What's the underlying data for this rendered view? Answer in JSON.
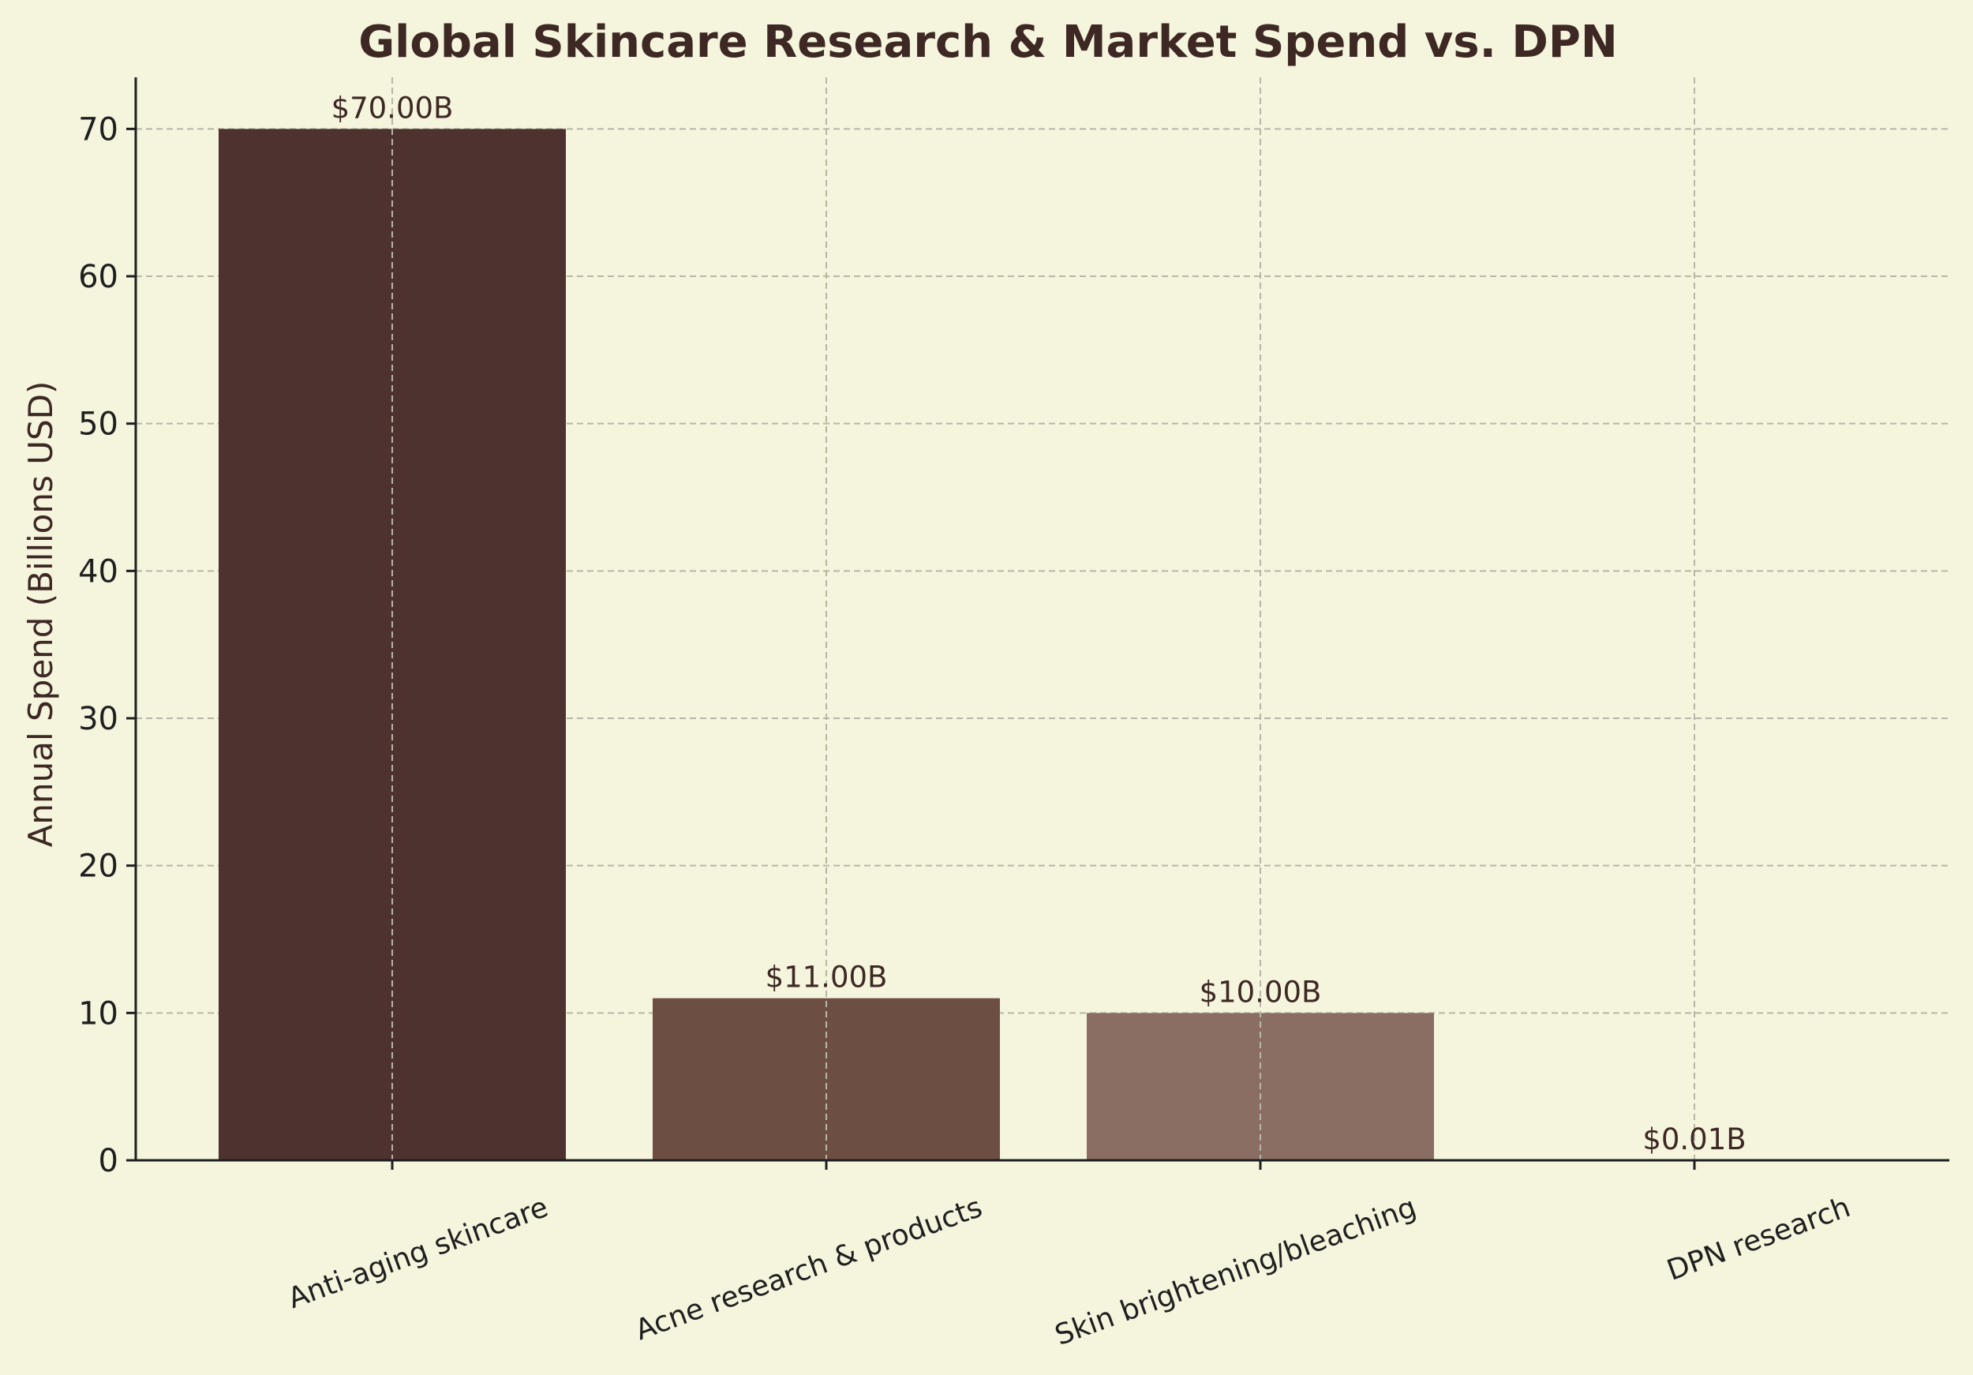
{
  "chart_data": {
    "type": "bar",
    "title": "Global Skincare Research & Market Spend vs. DPN",
    "xlabel": "",
    "ylabel": "Annual Spend (Billions USD)",
    "categories": [
      "Anti-aging skincare",
      "Acne research & products",
      "Skin brightening/bleaching",
      "DPN research"
    ],
    "values": [
      70.0,
      11.0,
      10.0,
      0.01
    ],
    "value_labels": [
      "$70.00B",
      "$11.00B",
      "$10.00B",
      "$0.01B"
    ],
    "bar_colors": [
      "#4e3230",
      "#6d4e43",
      "#8a6e63",
      "#bca69c"
    ],
    "ylim": [
      0,
      73.5
    ],
    "yticks": [
      0,
      10,
      20,
      30,
      40,
      50,
      60,
      70
    ],
    "grid": true,
    "legend": "none"
  },
  "colors": {
    "background": "#f5f4dd",
    "title_text": "#3d2824",
    "label_text": "#3d2824",
    "grid": "#b8b6a6",
    "axis": "#1f1f1f"
  }
}
